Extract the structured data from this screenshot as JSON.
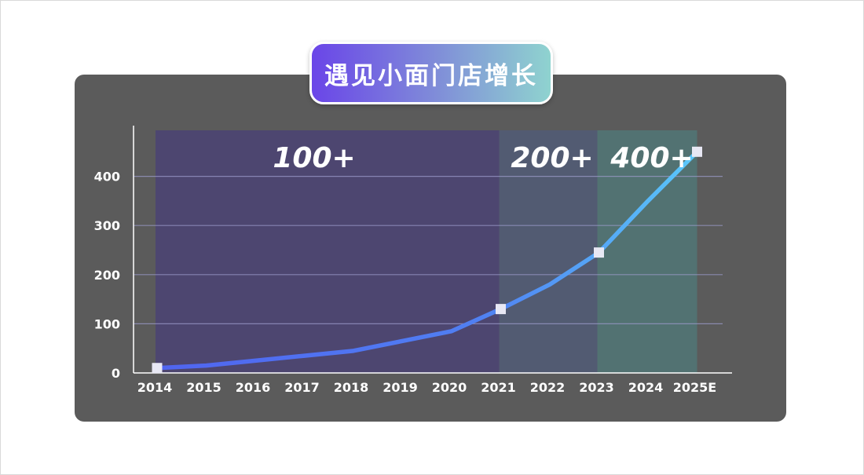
{
  "chart_data": {
    "type": "line",
    "title": "遇见小面门店增长",
    "categories": [
      "2014",
      "2015",
      "2016",
      "2017",
      "2018",
      "2019",
      "2020",
      "2021",
      "2022",
      "2023",
      "2024",
      "2025E"
    ],
    "values": [
      10,
      15,
      25,
      35,
      45,
      65,
      85,
      130,
      180,
      245,
      350,
      450
    ],
    "marker_indices": [
      0,
      7,
      9,
      11
    ],
    "ylim": [
      0,
      480
    ],
    "yticks": [
      0,
      100,
      200,
      300,
      400
    ],
    "xlabel": "",
    "ylabel": "",
    "grid": true,
    "bands": [
      {
        "label": "100+",
        "start": "2014",
        "end": "2021",
        "color": "#4d4670"
      },
      {
        "label": "200+",
        "start": "2021",
        "end": "2023",
        "color": "#525b72"
      },
      {
        "label": "400+",
        "start": "2023",
        "end": "2025E",
        "color": "#527272"
      }
    ],
    "line_gradient": [
      "#5064f0",
      "#50a0f5",
      "#5ac8fa"
    ],
    "marker_color": "#e8e8f4",
    "grid_color": "#9a9ac8"
  }
}
